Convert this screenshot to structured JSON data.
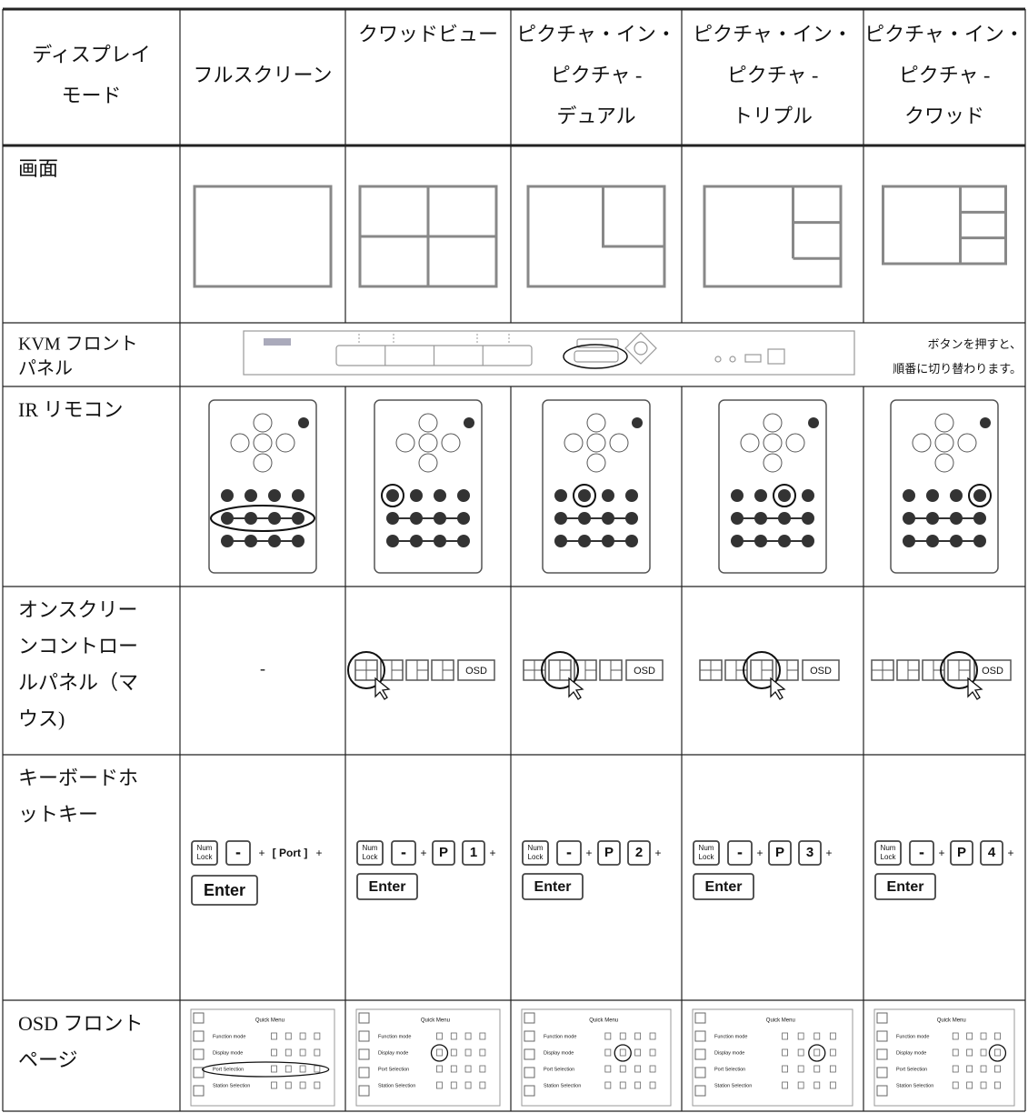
{
  "table": {
    "header": [
      [
        "ディスプレイ",
        "モード"
      ],
      [
        "フルスクリーン"
      ],
      [
        "クワッドビュー"
      ],
      [
        "ピクチャ・イン・",
        "ピクチャ -",
        "デュアル"
      ],
      [
        "ピクチャ・イン・",
        "ピクチャ -",
        "トリプル"
      ],
      [
        "ピクチャ・イン・",
        "ピクチャ -",
        "クワッド"
      ]
    ],
    "rows": [
      {
        "label": [
          "画面"
        ]
      },
      {
        "label": [
          "KVM フロント",
          "パネル"
        ],
        "note": [
          "ボタンを押すと、",
          "順番に切り替わります。"
        ]
      },
      {
        "label": [
          "IR リモコン"
        ]
      },
      {
        "label": [
          "オンスクリー",
          "ンコントロー",
          "ルパネル（マ",
          "ウス)"
        ],
        "empty": "-",
        "osd_button": "OSD"
      },
      {
        "label": [
          "キーボードホ",
          "ットキー"
        ],
        "keys": {
          "num": "Num",
          "lock": "Lock",
          "minus": "-",
          "plus": "+",
          "port": "[ Port ]",
          "p": "P",
          "digits": [
            "1",
            "2",
            "3",
            "4"
          ],
          "enter": "Enter"
        }
      },
      {
        "label": [
          "OSD フロント",
          "ページ"
        ],
        "menu": {
          "title": "Quick Menu",
          "items": [
            "Function mode",
            "Display mode",
            "Port Selection",
            "Station Selection"
          ]
        }
      }
    ]
  }
}
